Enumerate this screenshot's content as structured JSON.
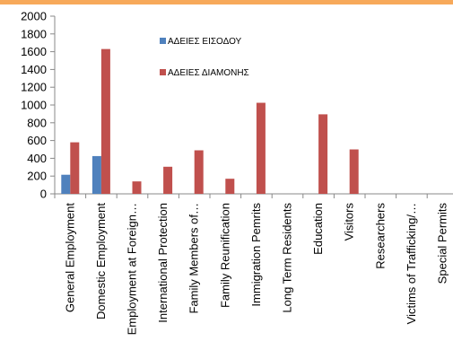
{
  "chart_data": {
    "type": "bar",
    "categories": [
      "General Employment",
      "Domestic Employment",
      "Employment at Foreign…",
      "International Protection",
      "Family Members of…",
      "Family Reunification",
      "Immigration Pemrits",
      "Long Term Residents",
      "Education",
      "Visitors",
      "Researchers",
      "Victims of Trafficking/…",
      "Special Permits"
    ],
    "series": [
      {
        "name": "ΑΔΕΙΕΣ ΕΙΣΟΔΟΥ",
        "color": "#4f81bd",
        "values": [
          215,
          425,
          0,
          0,
          0,
          0,
          0,
          0,
          0,
          0,
          0,
          0,
          0
        ]
      },
      {
        "name": "ΑΔΕΙΕΣ ΔΙΑΜΟΝΗΣ",
        "color": "#c0504d",
        "values": [
          580,
          1630,
          140,
          305,
          490,
          170,
          1025,
          0,
          895,
          500,
          0,
          0,
          0
        ]
      }
    ],
    "yticks": [
      0,
      200,
      400,
      600,
      800,
      1000,
      1200,
      1400,
      1600,
      1800,
      2000
    ],
    "ylim": [
      0,
      2000
    ],
    "grid": false,
    "legend": "top-center",
    "title": "",
    "xlabel": "",
    "ylabel": ""
  }
}
